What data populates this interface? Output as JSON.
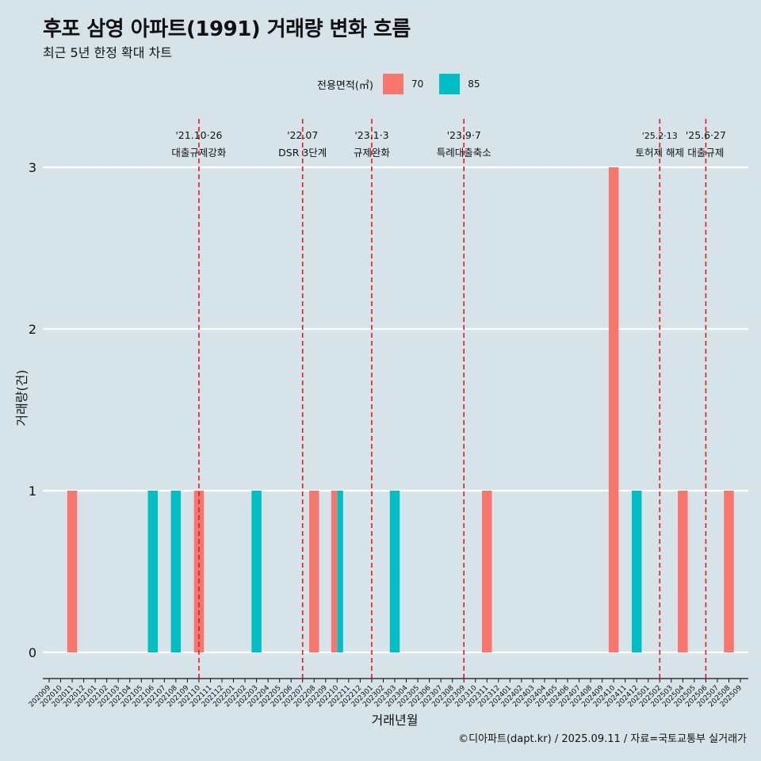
{
  "title": "후포 삼영 아파트(1991) 거래량 변화 흐름",
  "subtitle": "최근 5년 한정 확대 차트",
  "legend": {
    "title": "전용면적(㎡)",
    "items": [
      {
        "label": "70",
        "color": "#F8766D"
      },
      {
        "label": "85",
        "color": "#00BFC4"
      }
    ]
  },
  "caption": "©디아파트(dapt.kr) / 2025.09.11 / 자료=국토교통부 실거래가",
  "chart_data": {
    "type": "bar",
    "xlabel": "거래년월",
    "ylabel": "거래량(건)",
    "ylim": [
      0,
      3
    ],
    "yticks": [
      0,
      1,
      2,
      3
    ],
    "grid": true,
    "legend_position": "top",
    "categories": [
      "202009",
      "202010",
      "202011",
      "202012",
      "202101",
      "202102",
      "202103",
      "202104",
      "202105",
      "202106",
      "202107",
      "202108",
      "202109",
      "202110",
      "202111",
      "202112",
      "202201",
      "202202",
      "202203",
      "202204",
      "202205",
      "202206",
      "202207",
      "202208",
      "202209",
      "202210",
      "202211",
      "202212",
      "202301",
      "202302",
      "202303",
      "202304",
      "202305",
      "202306",
      "202307",
      "202308",
      "202309",
      "202310",
      "202311",
      "202312",
      "202401",
      "202402",
      "202403",
      "202404",
      "202405",
      "202406",
      "202407",
      "202408",
      "202409",
      "202410",
      "202411",
      "202412",
      "202501",
      "202502",
      "202503",
      "202504",
      "202505",
      "202506",
      "202507",
      "202508",
      "202509"
    ],
    "series": [
      {
        "name": "70",
        "color": "#F8766D",
        "points": [
          {
            "x": "202011",
            "y": 1
          },
          {
            "x": "202110",
            "y": 1
          },
          {
            "x": "202208",
            "y": 1
          },
          {
            "x": "202210",
            "y": 1
          },
          {
            "x": "202311",
            "y": 1
          },
          {
            "x": "202410",
            "y": 3
          },
          {
            "x": "202504",
            "y": 1
          },
          {
            "x": "202508",
            "y": 1
          }
        ]
      },
      {
        "name": "85",
        "color": "#00BFC4",
        "points": [
          {
            "x": "202106",
            "y": 1
          },
          {
            "x": "202108",
            "y": 1
          },
          {
            "x": "202203",
            "y": 1
          },
          {
            "x": "202210",
            "y": 1
          },
          {
            "x": "202303",
            "y": 1
          },
          {
            "x": "202412",
            "y": 1
          }
        ]
      }
    ],
    "annotations": [
      {
        "x": "202110",
        "date": "'21.10·26",
        "label": "대출규제강화"
      },
      {
        "x": "202207",
        "date": "'22.07",
        "label": "DSR 3단계"
      },
      {
        "x": "202301",
        "date": "'23.1·3",
        "label": "규제완화"
      },
      {
        "x": "202309",
        "date": "'23.9·7",
        "label": "특례대출축소"
      },
      {
        "x": "202502",
        "date": "'25.2·13",
        "label": "토허제 해제"
      },
      {
        "x": "202506",
        "date": "'25.6·27",
        "label": "대출규제"
      }
    ]
  }
}
